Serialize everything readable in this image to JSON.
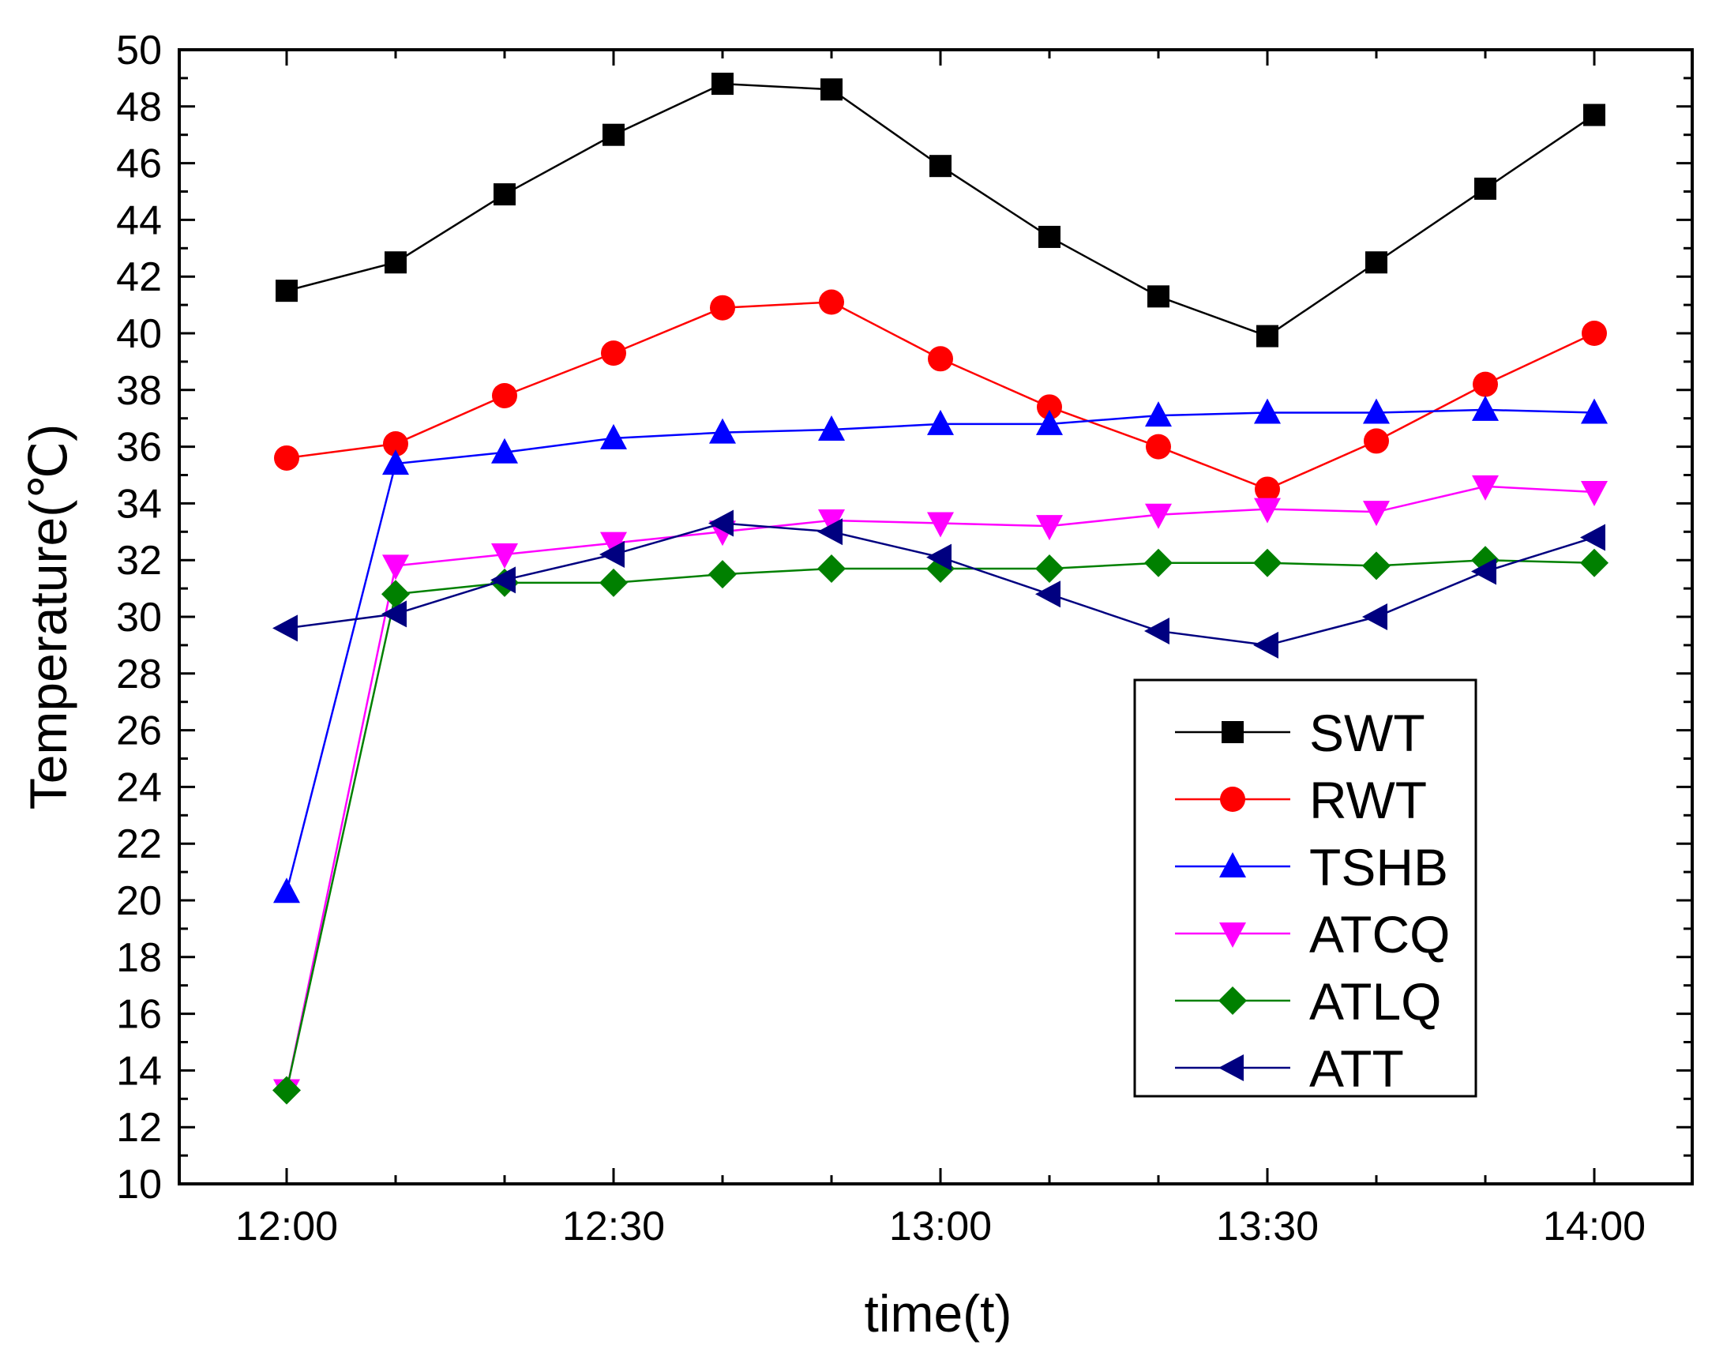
{
  "chart_data": {
    "type": "line",
    "xlabel": "time(t)",
    "ylabel": "Temperature(℃)",
    "x": [
      "12:00",
      "12:10",
      "12:20",
      "12:30",
      "12:40",
      "12:50",
      "13:00",
      "13:10",
      "13:20",
      "13:30",
      "13:40",
      "13:50",
      "14:00"
    ],
    "x_tick_labels": [
      "12:00",
      "12:30",
      "13:00",
      "13:30",
      "14:00"
    ],
    "ylim": [
      10,
      50
    ],
    "y_ticks": [
      10,
      12,
      14,
      16,
      18,
      20,
      22,
      24,
      26,
      28,
      30,
      32,
      34,
      36,
      38,
      40,
      42,
      44,
      46,
      48,
      50
    ],
    "legend_position": "bottom-right",
    "grid": false,
    "series": [
      {
        "name": "SWT",
        "color": "#000000",
        "marker": "square",
        "values": [
          41.5,
          42.5,
          44.9,
          47.0,
          48.8,
          48.6,
          45.9,
          43.4,
          41.3,
          39.9,
          42.5,
          45.1,
          47.7
        ]
      },
      {
        "name": "RWT",
        "color": "#ff0000",
        "marker": "circle",
        "values": [
          35.6,
          36.1,
          37.8,
          39.3,
          40.9,
          41.1,
          39.1,
          37.4,
          36.0,
          34.5,
          36.2,
          38.2,
          40.0
        ]
      },
      {
        "name": "TSHB",
        "color": "#0000ff",
        "marker": "triangle-up",
        "values": [
          20.3,
          35.4,
          35.8,
          36.3,
          36.5,
          36.6,
          36.8,
          36.8,
          37.1,
          37.2,
          37.2,
          37.3,
          37.2
        ]
      },
      {
        "name": "ATCQ",
        "color": "#ff00ff",
        "marker": "triangle-down",
        "values": [
          13.3,
          31.8,
          32.2,
          32.6,
          33.0,
          33.4,
          33.3,
          33.2,
          33.6,
          33.8,
          33.7,
          34.6,
          34.4
        ]
      },
      {
        "name": "ATLQ",
        "color": "#008000",
        "marker": "diamond",
        "values": [
          13.3,
          30.8,
          31.2,
          31.2,
          31.5,
          31.7,
          31.7,
          31.7,
          31.9,
          31.9,
          31.8,
          32.0,
          31.9
        ]
      },
      {
        "name": "ATT",
        "color": "#000080",
        "marker": "triangle-left",
        "values": [
          29.6,
          30.1,
          31.3,
          32.2,
          33.3,
          33.0,
          32.1,
          30.8,
          29.5,
          29.0,
          30.0,
          31.6,
          32.8
        ]
      }
    ]
  }
}
